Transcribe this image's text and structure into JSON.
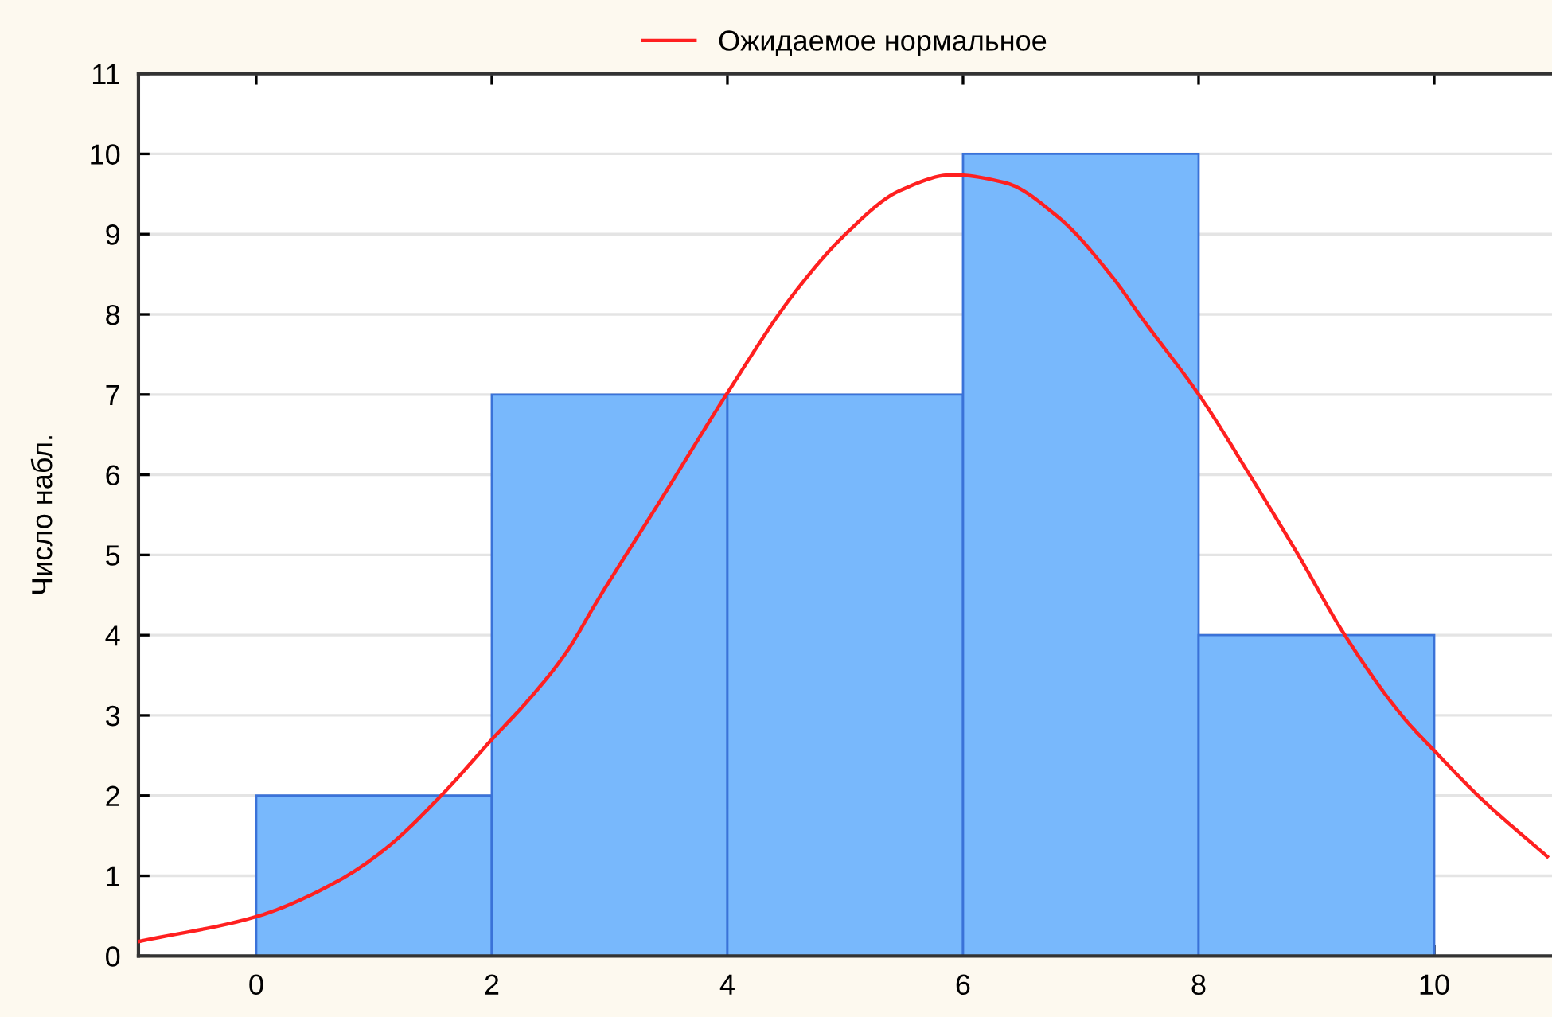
{
  "chart_data": {
    "type": "histogram",
    "ylabel": "Число набл.",
    "bins": [
      0,
      2,
      4,
      6,
      8,
      10
    ],
    "values": [
      2,
      7,
      7,
      10,
      4
    ],
    "color": "#78b8fc",
    "xlim": [
      -1,
      11
    ],
    "xticks": [
      0,
      2,
      4,
      6,
      8,
      10
    ],
    "ylim": [
      0,
      11
    ],
    "yticks": [
      0,
      1,
      2,
      3,
      4,
      5,
      6,
      7,
      8,
      9,
      10,
      11
    ],
    "grid": "y",
    "legend": "top",
    "series": [
      {
        "name": "Ожидаемое нормальное",
        "type": "line",
        "color": "#ff2020",
        "x": [
          -1,
          0,
          0.7,
          1.1,
          1.57,
          2.0,
          2.31,
          2.63,
          2.9,
          3.44,
          4.0,
          4.56,
          5.01,
          5.46,
          5.91,
          6.36,
          6.81,
          7.26,
          7.52,
          8.02,
          8.42,
          8.83,
          9.25,
          9.73,
          10.02,
          10.4,
          10.96
        ],
        "values": [
          0.18,
          0.49,
          0.94,
          1.34,
          2.0,
          2.7,
          3.19,
          3.78,
          4.44,
          5.7,
          7.02,
          8.25,
          9.01,
          9.54,
          9.74,
          9.64,
          9.21,
          8.48,
          7.95,
          6.96,
          6.03,
          5.04,
          3.98,
          2.99,
          2.53,
          1.96,
          1.24
        ]
      }
    ]
  }
}
